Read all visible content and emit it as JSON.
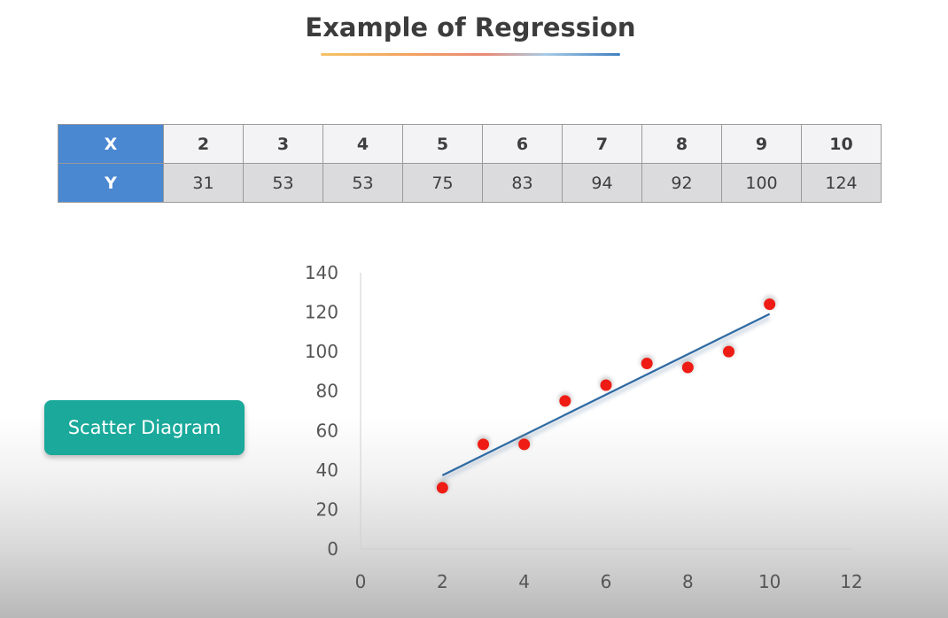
{
  "title": "Example of Regression",
  "table": {
    "x_label": "X",
    "y_label": "Y",
    "x_values": [
      "2",
      "3",
      "4",
      "5",
      "6",
      "7",
      "8",
      "9",
      "10"
    ],
    "y_values": [
      "31",
      "53",
      "53",
      "75",
      "83",
      "94",
      "92",
      "100",
      "124"
    ]
  },
  "button": {
    "label": "Scatter Diagram"
  },
  "colors": {
    "header_blue": "#4a88d2",
    "button_teal": "#1aa99b",
    "point_red": "#ee1c14",
    "trendline_blue": "#2e6aa3"
  },
  "chart_data": {
    "type": "scatter",
    "title": "",
    "xlabel": "",
    "ylabel": "",
    "xlim": [
      0,
      12
    ],
    "ylim": [
      0,
      140
    ],
    "x_ticks": [
      0,
      2,
      4,
      6,
      8,
      10,
      12
    ],
    "y_ticks": [
      0,
      20,
      40,
      60,
      80,
      100,
      120,
      140
    ],
    "grid": false,
    "legend": "none",
    "series": [
      {
        "x": [
          2,
          3,
          4,
          5,
          6,
          7,
          8,
          9,
          10
        ],
        "y": [
          31,
          53,
          53,
          75,
          83,
          94,
          92,
          100,
          124
        ]
      }
    ],
    "trendline": {
      "type": "linear",
      "x": [
        2,
        10
      ],
      "y": [
        37.3,
        119.1
      ]
    }
  }
}
